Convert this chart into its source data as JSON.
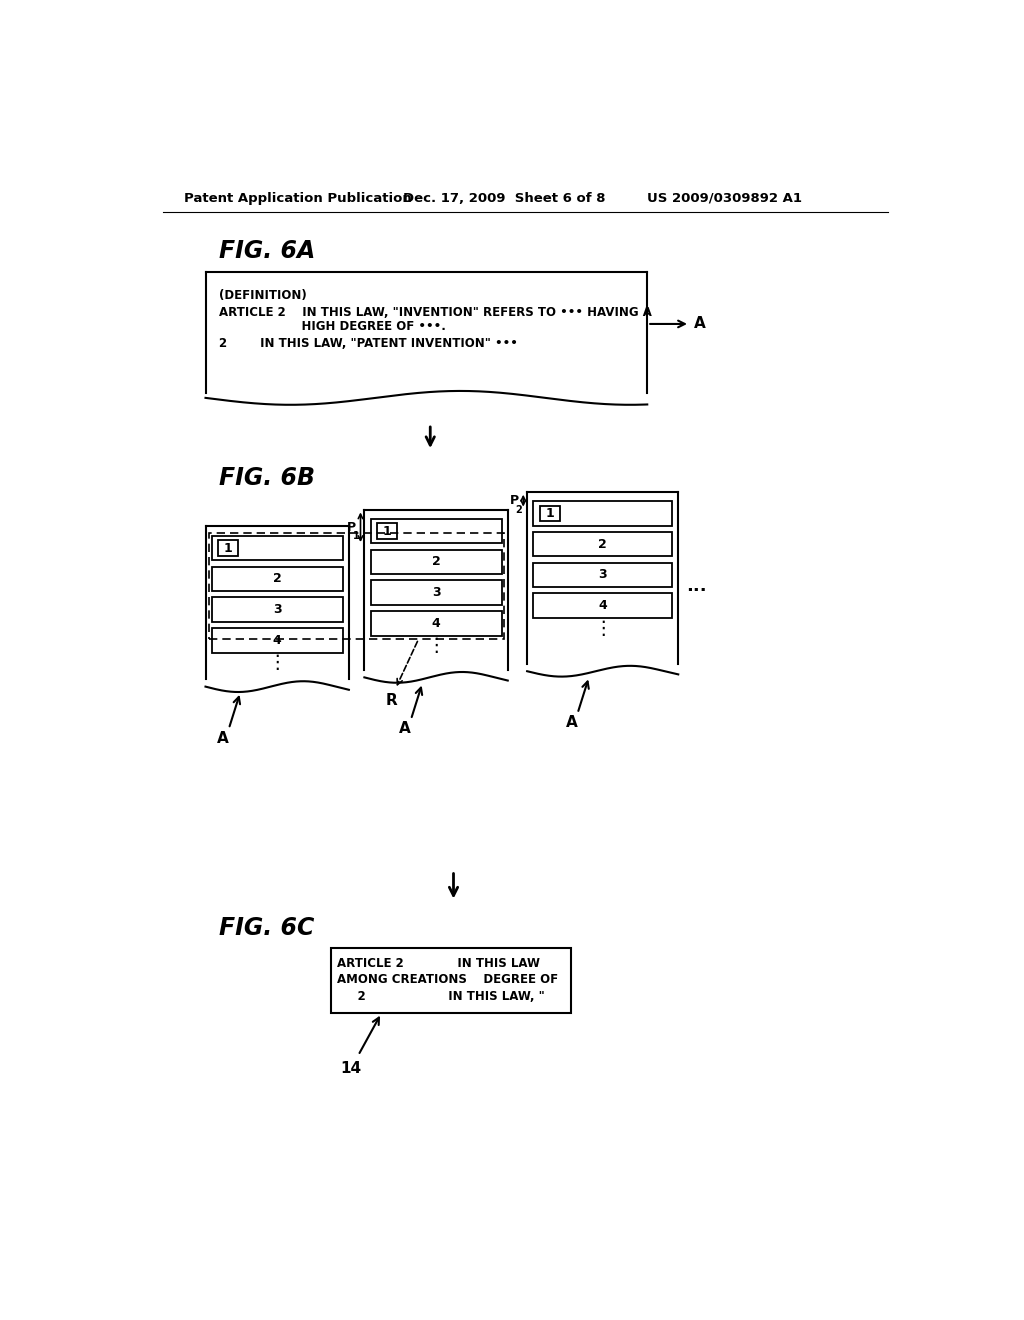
{
  "bg_color": "#ffffff",
  "header_left": "Patent Application Publication",
  "header_mid": "Dec. 17, 2009  Sheet 6 of 8",
  "header_right": "US 2009/0309892 A1",
  "fig6a_label": "FIG. 6A",
  "fig6b_label": "FIG. 6B",
  "fig6c_label": "FIG. 6C",
  "fig6a_text_line1": "(DEFINITION)",
  "fig6a_text_line2": "ARTICLE 2    IN THIS LAW, \"INVENTION\" REFERS TO ••• HAVING A",
  "fig6a_text_line3": "                    HIGH DEGREE OF •••.",
  "fig6a_text_line4": "2        IN THIS LAW, \"PATENT INVENTION\" •••",
  "fig6c_text_line1": "ARTICLE 2             IN THIS LAW",
  "fig6c_text_line2": "AMONG CREATIONS    DEGREE OF",
  "fig6c_text_line3": "     2                    IN THIS LAW, \""
}
